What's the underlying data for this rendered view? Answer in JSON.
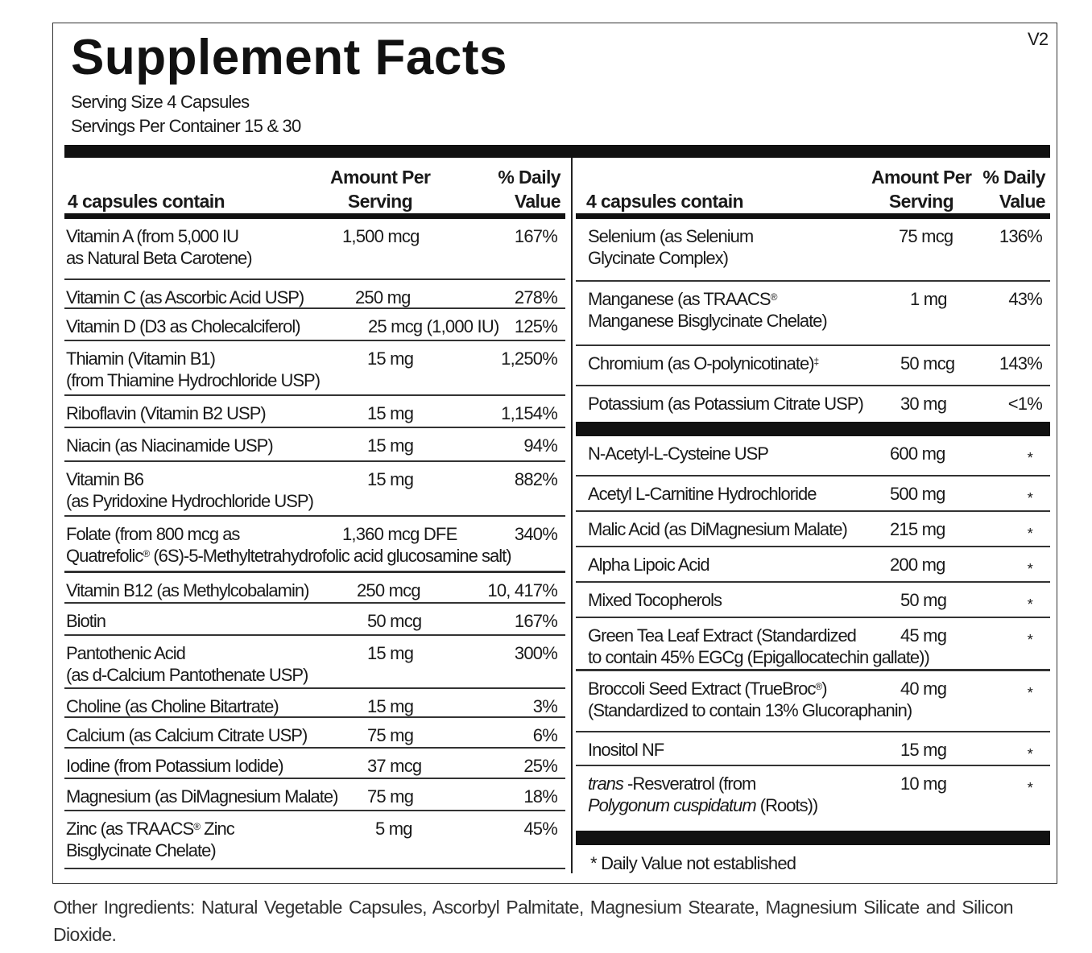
{
  "title": "Supplement Facts",
  "version": "V2",
  "serving_size": "Serving Size  4 Capsules",
  "servings_per_container": "Servings Per Container  15 & 30",
  "headers": {
    "contain": "4 capsules contain",
    "amount_1": "Amount Per",
    "amount_2": "Serving",
    "dv_1": "% Daily",
    "dv_2": "Value"
  },
  "left_rows": [
    {
      "name": [
        "Vitamin A (from 5,000 IU",
        "as Natural Beta Carotene)"
      ],
      "amount": "1,500 mcg",
      "dv": "167%"
    },
    {
      "name": [
        "Vitamin C (as Ascorbic Acid USP)"
      ],
      "amount": "250 mg",
      "dv": "278%"
    },
    {
      "name": [
        "Vitamin D (D3 as Cholecalciferol)"
      ],
      "amount": "25 mcg (1,000 IU)",
      "dv": "125%"
    },
    {
      "name": [
        "Thiamin (Vitamin B1)",
        "(from Thiamine Hydrochloride USP)"
      ],
      "amount": "15 mg",
      "dv": "1,250%"
    },
    {
      "name": [
        "Riboflavin (Vitamin B2 USP)"
      ],
      "amount": "15 mg",
      "dv": "1,154%"
    },
    {
      "name": [
        "Niacin (as Niacinamide USP)"
      ],
      "amount": "15 mg",
      "dv": "94%"
    },
    {
      "name": [
        "Vitamin B6",
        "(as Pyridoxine Hydrochloride USP)"
      ],
      "amount": "15 mg",
      "dv": "882%"
    },
    {
      "name": [
        "Folate (from 800 mcg as",
        "Quatrefolic® (6S)-5-Methyltetrahydrofolic acid glucosamine salt)"
      ],
      "amount": "1,360 mcg DFE",
      "dv": "340%"
    },
    {
      "name": [
        "Vitamin B12 (as Methylcobalamin)"
      ],
      "amount": "250 mcg",
      "dv": "10, 417%"
    },
    {
      "name": [
        "Biotin"
      ],
      "amount": "50 mcg",
      "dv": "167%"
    },
    {
      "name": [
        "Pantothenic Acid",
        "(as d-Calcium Pantothenate USP)"
      ],
      "amount": "15 mg",
      "dv": "300%"
    },
    {
      "name": [
        "Choline (as Choline Bitartrate)"
      ],
      "amount": "15 mg",
      "dv": "3%"
    },
    {
      "name": [
        "Calcium (as Calcium Citrate USP)"
      ],
      "amount": "75 mg",
      "dv": "6%"
    },
    {
      "name": [
        "Iodine (from Potassium Iodide)"
      ],
      "amount": "37 mcg",
      "dv": "25%"
    },
    {
      "name": [
        "Magnesium (as DiMagnesium Malate)"
      ],
      "amount": "75 mg",
      "dv": "18%"
    },
    {
      "name": [
        "Zinc (as TRAACS® Zinc",
        "Bisglycinate Chelate)"
      ],
      "amount": "5 mg",
      "dv": "45%"
    }
  ],
  "right_rows_a": [
    {
      "name": [
        "Selenium (as Selenium",
        "Glycinate Complex)"
      ],
      "amount": "75 mcg",
      "dv": "136%"
    },
    {
      "name": [
        "Manganese (as TRAACS®",
        "Manganese Bisglycinate Chelate)"
      ],
      "amount": "1 mg",
      "dv": "43%"
    },
    {
      "name": [
        "Chromium (as O-polynicotinate)‡"
      ],
      "amount": "50 mcg",
      "dv": "143%"
    },
    {
      "name": [
        "Potassium (as Potassium Citrate USP)"
      ],
      "amount": "30 mg",
      "dv": "<1%"
    }
  ],
  "right_rows_b": [
    {
      "name": [
        "N-Acetyl-L-Cysteine USP"
      ],
      "amount": "600 mg",
      "dv": "*"
    },
    {
      "name": [
        "Acetyl L-Carnitine Hydrochloride"
      ],
      "amount": "500 mg",
      "dv": "*"
    },
    {
      "name": [
        "Malic Acid (as DiMagnesium Malate)"
      ],
      "amount": "215 mg",
      "dv": "*"
    },
    {
      "name": [
        "Alpha Lipoic Acid"
      ],
      "amount": "200 mg",
      "dv": "*"
    },
    {
      "name": [
        "Mixed Tocopherols"
      ],
      "amount": "50 mg",
      "dv": "*"
    },
    {
      "name": [
        "Green Tea Leaf Extract  (Standardized",
        "to contain 45% EGCg (Epigallocatechin gallate))"
      ],
      "amount": "45 mg",
      "dv": "*"
    },
    {
      "name": [
        "Broccoli Seed Extract (TrueBroc®)",
        "(Standardized to contain 13% Glucoraphanin)"
      ],
      "amount": "40 mg",
      "dv": "*"
    },
    {
      "name": [
        "Inositol NF"
      ],
      "amount": "15 mg",
      "dv": "*"
    },
    {
      "name": [
        [
          {
            "t": "trans",
            "i": true
          },
          {
            "t": " -Resveratrol (from",
            "i": false
          }
        ],
        [
          {
            "t": "Polygonum cuspidatum",
            "i": true
          },
          {
            "t": " (Roots))",
            "i": false
          }
        ]
      ],
      "amount": "10 mg",
      "dv": "*"
    }
  ],
  "footnote": "*  Daily Value not established",
  "other_ingredients": "Other Ingredients: Natural Vegetable Capsules, Ascorbyl Palmitate, Magnesium Stearate, Magnesium Silicate and Silicon Dioxide."
}
